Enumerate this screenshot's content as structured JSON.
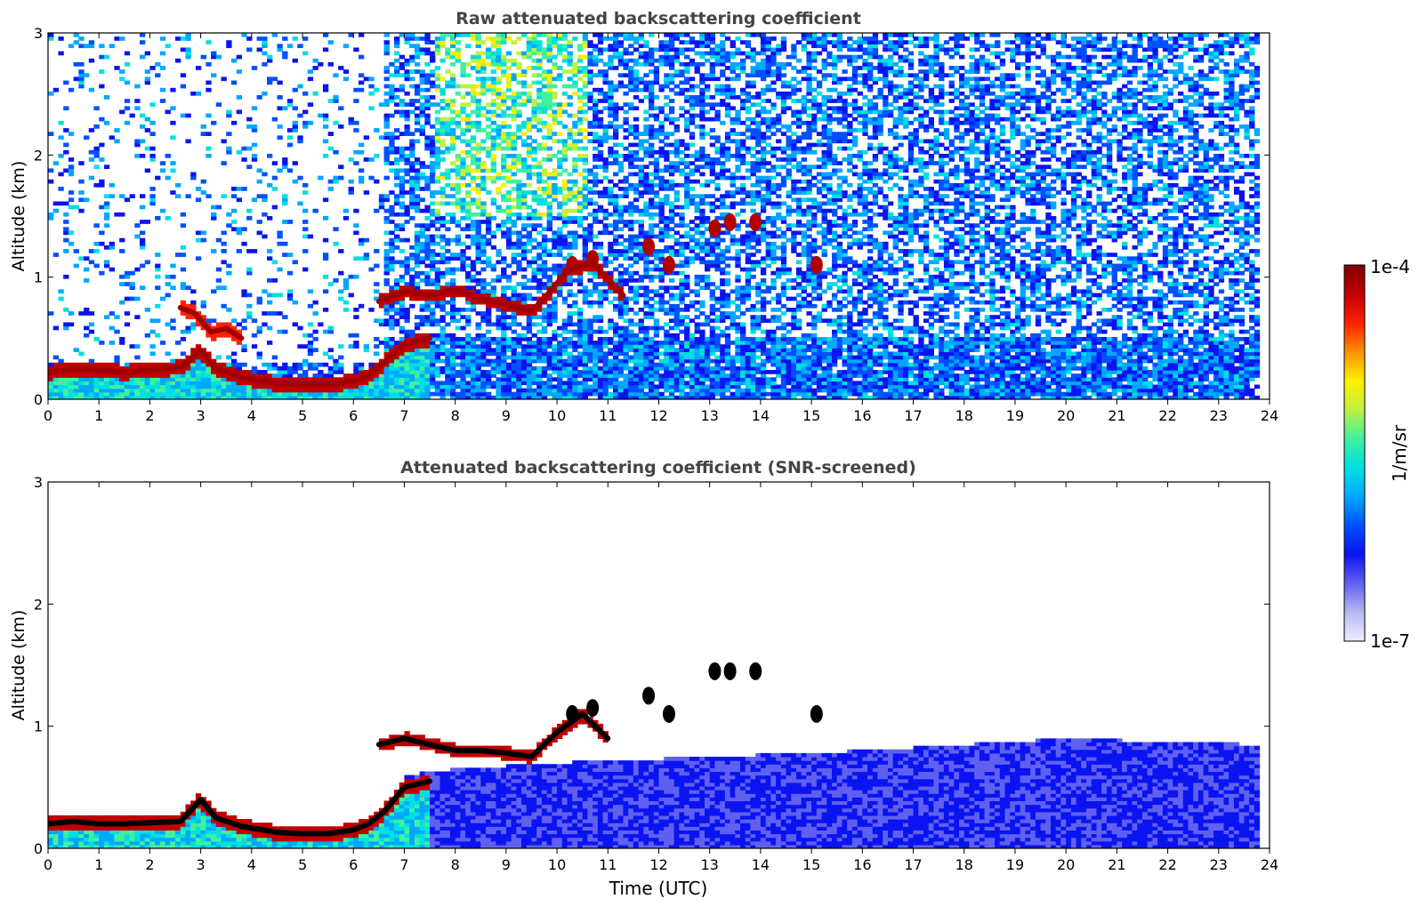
{
  "chart_data": [
    {
      "type": "heatmap",
      "title": "Raw attenuated backscattering coefficient",
      "xlabel": "",
      "ylabel": "Altitude (km)",
      "xlim": [
        0,
        24
      ],
      "ylim": [
        0,
        3
      ],
      "xticks": [
        "0",
        "1",
        "2",
        "3",
        "4",
        "5",
        "6",
        "7",
        "8",
        "9",
        "10",
        "11",
        "12",
        "13",
        "14",
        "15",
        "16",
        "17",
        "18",
        "19",
        "20",
        "21",
        "22",
        "23",
        "24"
      ],
      "yticks": [
        "0",
        "1",
        "2",
        "3"
      ],
      "grid": false,
      "data_end_hour": 23.8,
      "features": {
        "boundary_layer_aerosol": [
          [
            0,
            0.22
          ],
          [
            0.5,
            0.25
          ],
          [
            1,
            0.24
          ],
          [
            1.5,
            0.22
          ],
          [
            2,
            0.24
          ],
          [
            2.6,
            0.26
          ],
          [
            3,
            0.4
          ],
          [
            3.3,
            0.25
          ],
          [
            3.8,
            0.18
          ],
          [
            4.5,
            0.13
          ],
          [
            5,
            0.12
          ],
          [
            5.5,
            0.12
          ],
          [
            6,
            0.15
          ],
          [
            6.3,
            0.2
          ],
          [
            6.6,
            0.3
          ],
          [
            7,
            0.45
          ],
          [
            7.5,
            0.5
          ]
        ],
        "residual_layer_top": [
          [
            6.5,
            0.8
          ],
          [
            7,
            0.88
          ],
          [
            7.5,
            0.85
          ],
          [
            8,
            0.9
          ],
          [
            8.5,
            0.82
          ],
          [
            9,
            0.78
          ],
          [
            9.5,
            0.72
          ],
          [
            9.8,
            0.85
          ],
          [
            10.2,
            1.05
          ],
          [
            10.7,
            1.12
          ],
          [
            11.3,
            0.85
          ]
        ],
        "elevated_aerosol_layer": [
          [
            2.6,
            0.75
          ],
          [
            2.9,
            0.7
          ],
          [
            3.2,
            0.55
          ],
          [
            3.5,
            0.58
          ],
          [
            3.8,
            0.5
          ]
        ],
        "cloud_patches": [
          [
            10.3,
            1.1
          ],
          [
            10.7,
            1.15
          ],
          [
            11.8,
            1.25
          ],
          [
            12.2,
            1.1
          ],
          [
            13.1,
            1.4
          ],
          [
            13.4,
            1.45
          ],
          [
            13.9,
            1.45
          ],
          [
            15.1,
            1.1
          ]
        ],
        "noise_high_sky_hours": [
          7.5,
          10.5
        ]
      }
    },
    {
      "type": "heatmap",
      "title": "Attenuated backscattering coefficient (SNR-screened)",
      "xlabel": "Time (UTC)",
      "ylabel": "Altitude (km)",
      "xlim": [
        0,
        24
      ],
      "ylim": [
        0,
        3
      ],
      "xticks": [
        "0",
        "1",
        "2",
        "3",
        "4",
        "5",
        "6",
        "7",
        "8",
        "9",
        "10",
        "11",
        "12",
        "13",
        "14",
        "15",
        "16",
        "17",
        "18",
        "19",
        "20",
        "21",
        "22",
        "23",
        "24"
      ],
      "yticks": [
        "0",
        "1",
        "2",
        "3"
      ],
      "grid": false,
      "data_end_hour": 23.8,
      "features": {
        "boundary_layer_aerosol": [
          [
            0,
            0.2
          ],
          [
            0.5,
            0.22
          ],
          [
            1,
            0.2
          ],
          [
            1.5,
            0.2
          ],
          [
            2,
            0.21
          ],
          [
            2.6,
            0.22
          ],
          [
            3,
            0.4
          ],
          [
            3.3,
            0.25
          ],
          [
            3.8,
            0.18
          ],
          [
            4.5,
            0.13
          ],
          [
            5,
            0.12
          ],
          [
            5.5,
            0.12
          ],
          [
            6,
            0.15
          ],
          [
            6.3,
            0.2
          ],
          [
            6.6,
            0.3
          ],
          [
            7,
            0.5
          ],
          [
            7.5,
            0.55
          ]
        ],
        "residual_layer_top": [
          [
            6.5,
            0.85
          ],
          [
            7,
            0.9
          ],
          [
            7.5,
            0.85
          ],
          [
            8,
            0.8
          ],
          [
            8.5,
            0.8
          ],
          [
            9,
            0.78
          ],
          [
            9.5,
            0.75
          ],
          [
            10,
            0.95
          ],
          [
            10.5,
            1.1
          ],
          [
            11,
            0.9
          ]
        ],
        "cloud_patches": [
          [
            10.3,
            1.1
          ],
          [
            10.7,
            1.15
          ],
          [
            11.8,
            1.25
          ],
          [
            12.2,
            1.1
          ],
          [
            13.1,
            1.45
          ],
          [
            13.4,
            1.45
          ],
          [
            13.9,
            1.45
          ],
          [
            15.1,
            1.1
          ]
        ],
        "screened_layer_top": [
          [
            7,
            0.6
          ],
          [
            8,
            0.65
          ],
          [
            10,
            0.7
          ],
          [
            13,
            0.75
          ],
          [
            16,
            0.8
          ],
          [
            20,
            0.9
          ],
          [
            23.8,
            0.85
          ]
        ]
      }
    }
  ],
  "colorbar": {
    "label": "1/m/sr",
    "max_label": "1e-4",
    "min_label": "1e-7",
    "colormap": [
      "#eeeeff",
      "#b8b8f0",
      "#6060f0",
      "#0a14f0",
      "#0050ff",
      "#00a8ff",
      "#00e0e0",
      "#40f0a0",
      "#c0f040",
      "#fff000",
      "#ff9000",
      "#ff2000",
      "#c00000",
      "#800000"
    ]
  }
}
